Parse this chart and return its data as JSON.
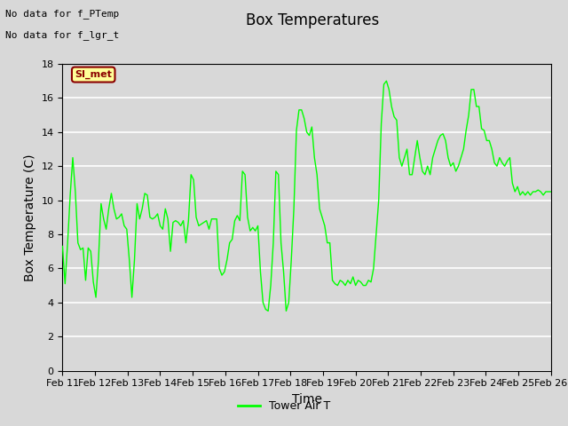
{
  "title": "Box Temperatures",
  "xlabel": "Time",
  "ylabel": "Box Temperature (C)",
  "ylim": [
    0,
    18
  ],
  "yticks": [
    0,
    2,
    4,
    6,
    8,
    10,
    12,
    14,
    16,
    18
  ],
  "x_labels": [
    "Feb 11",
    "Feb 12",
    "Feb 13",
    "Feb 14",
    "Feb 15",
    "Feb 16",
    "Feb 17",
    "Feb 18",
    "Feb 19",
    "Feb 20",
    "Feb 21",
    "Feb 22",
    "Feb 23",
    "Feb 24",
    "Feb 25",
    "Feb 26"
  ],
  "no_data_texts": [
    "No data for f_PTemp",
    "No data for f_lgr_t"
  ],
  "si_met_label": "SI_met",
  "legend_label": "Tower Air T",
  "line_color": "#00FF00",
  "bg_color": "#D8D8D8",
  "title_fontsize": 12,
  "axis_label_fontsize": 10,
  "tick_fontsize": 8,
  "y_data": [
    7.3,
    5.1,
    7.5,
    10.3,
    12.5,
    10.5,
    7.5,
    7.1,
    7.2,
    5.3,
    7.2,
    7.0,
    5.2,
    4.3,
    6.5,
    9.8,
    8.9,
    8.3,
    9.5,
    10.4,
    9.5,
    8.9,
    9.0,
    9.2,
    8.5,
    8.3,
    6.5,
    4.3,
    6.5,
    9.8,
    8.9,
    9.5,
    10.4,
    10.3,
    9.0,
    8.9,
    9.0,
    9.2,
    8.5,
    8.3,
    9.5,
    8.9,
    7.0,
    8.7,
    8.8,
    8.7,
    8.5,
    8.8,
    7.5,
    8.8,
    11.5,
    11.2,
    9.0,
    8.5,
    8.6,
    8.7,
    8.8,
    8.3,
    8.9,
    8.9,
    8.9,
    6.0,
    5.6,
    5.8,
    6.5,
    7.5,
    7.7,
    8.8,
    9.1,
    8.8,
    11.7,
    11.5,
    9.0,
    8.2,
    8.4,
    8.2,
    8.5,
    5.8,
    4.0,
    3.6,
    3.5,
    5.0,
    7.5,
    11.7,
    11.5,
    7.5,
    5.8,
    3.5,
    4.0,
    6.5,
    9.5,
    14.1,
    15.3,
    15.3,
    14.8,
    14.0,
    13.8,
    14.3,
    12.5,
    11.5,
    9.5,
    9.0,
    8.5,
    7.5,
    7.5,
    5.3,
    5.1,
    5.0,
    5.3,
    5.2,
    5.0,
    5.3,
    5.1,
    5.5,
    5.0,
    5.3,
    5.2,
    5.0,
    5.0,
    5.3,
    5.2,
    6.0,
    8.0,
    10.0,
    14.5,
    16.8,
    17.0,
    16.5,
    15.5,
    14.9,
    14.7,
    12.5,
    12.0,
    12.5,
    13.0,
    11.5,
    11.5,
    12.5,
    13.5,
    12.5,
    11.7,
    11.5,
    12.0,
    11.5,
    12.5,
    13.0,
    13.5,
    13.8,
    13.9,
    13.5,
    12.5,
    12.0,
    12.2,
    11.7,
    12.0,
    12.5,
    13.0,
    14.1,
    15.0,
    16.5,
    16.5,
    15.5,
    15.5,
    14.2,
    14.1,
    13.5,
    13.5,
    13.0,
    12.2,
    12.0,
    12.5,
    12.2,
    12.0,
    12.3,
    12.5,
    11.0,
    10.5,
    10.8,
    10.3,
    10.5,
    10.3,
    10.5,
    10.3,
    10.5,
    10.5,
    10.6,
    10.5,
    10.3,
    10.5,
    10.5,
    10.5
  ]
}
